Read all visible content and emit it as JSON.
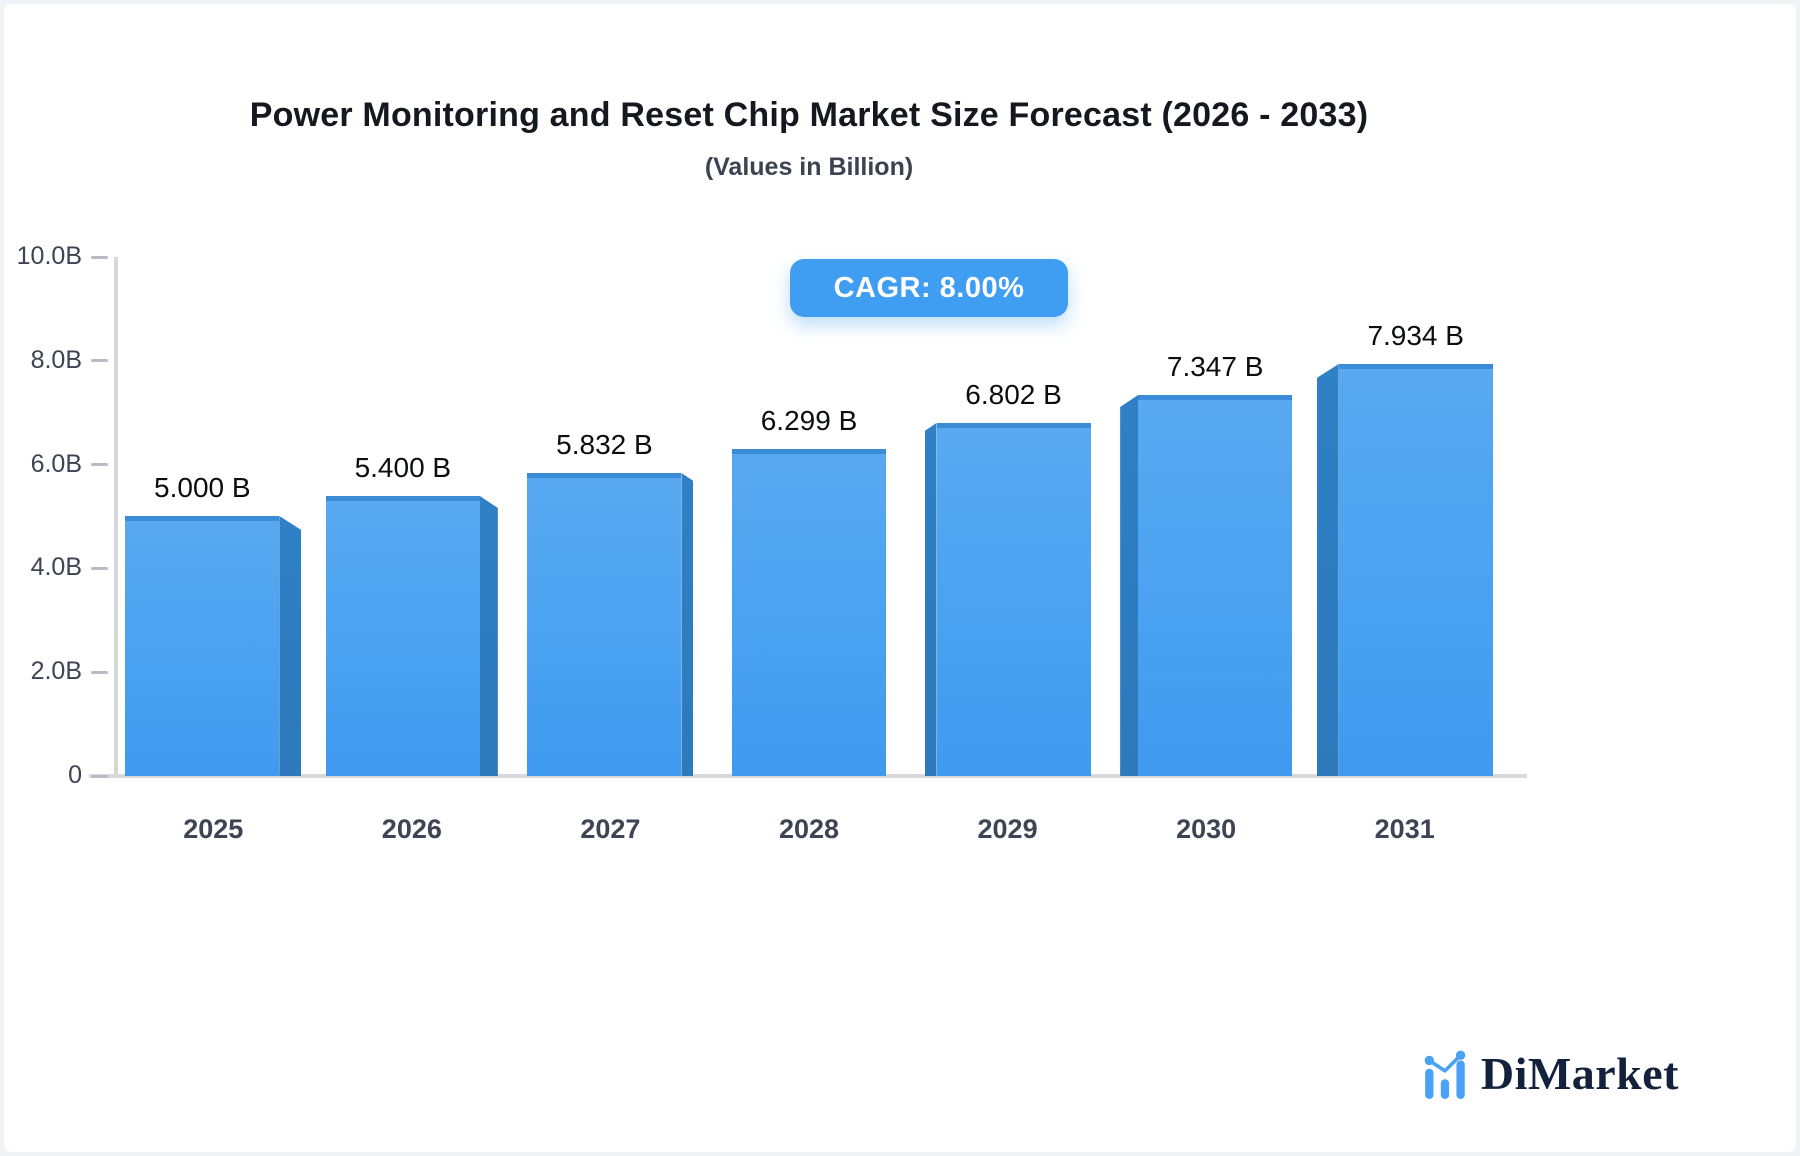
{
  "header": {
    "title": "Power Monitoring and Reset Chip Market Size Forecast (2026 - 2033)",
    "subtitle": "(Values in Billion)",
    "cagr_badge": "CAGR: 8.00%"
  },
  "chart_data": {
    "type": "bar",
    "title": "Power Monitoring and Reset Chip Market Size Forecast (2026 - 2033)",
    "subtitle": "(Values in Billion)",
    "cagr": "8.00%",
    "unit": "Billion",
    "categories": [
      "2025",
      "2026",
      "2027",
      "2028",
      "2029",
      "2030",
      "2031"
    ],
    "values": [
      5.0,
      5.4,
      5.832,
      6.299,
      6.802,
      7.347,
      7.934
    ],
    "value_labels": [
      "5.000 B",
      "5.400 B",
      "5.832 B",
      "6.299 B",
      "6.802 B",
      "7.347 B",
      "7.934 B"
    ],
    "y_ticks": [
      {
        "label": "10.0B",
        "value": 10
      },
      {
        "label": "8.0B",
        "value": 8
      },
      {
        "label": "6.0B",
        "value": 6
      },
      {
        "label": "4.0B",
        "value": 4
      },
      {
        "label": "2.0B",
        "value": 2
      },
      {
        "label": "0",
        "value": 0
      }
    ],
    "ylim": [
      0,
      10
    ],
    "xlabel": "",
    "ylabel": "",
    "grid": false,
    "legend": "none",
    "bar_style": "pseudo-3d",
    "colors": {
      "bar_front_top": "#58a9f0",
      "bar_front_bottom": "#3f9af0",
      "bar_side": "#2d7cc0",
      "bar_top_strip": "#3a8cd9",
      "axis_line": "#d5d7dc",
      "tick_mark": "#b9bcc4",
      "axis_text": "#3d4454",
      "value_text": "#0b0d11",
      "badge_bg": "#3f9ef2",
      "badge_text": "#ffffff"
    }
  },
  "branding": {
    "logo_text": "DiMarket",
    "logo_text_color": "#14213c",
    "logo_icon": "mini-bar-chart-icon",
    "logo_icon_color": "#4aa2f6"
  }
}
